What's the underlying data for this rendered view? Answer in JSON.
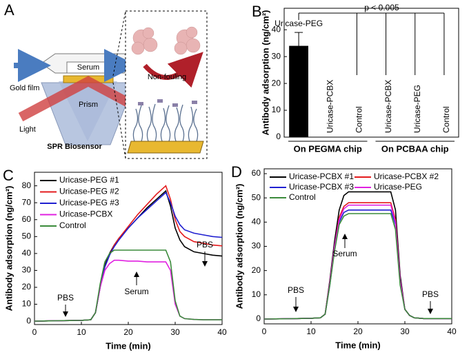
{
  "diagram": {
    "panel_label": "A",
    "gold_film": "Gold film",
    "serum": "Serum",
    "prism": "Prism",
    "light": "Light",
    "caption": "SPR Biosensor",
    "non_fouling": "Non-fouling"
  },
  "chart_data": [
    {
      "type": "bar",
      "panel_label": "B",
      "y_label": "Antibody adsorption (ng/cm²)",
      "categories": [
        "Uricase-PEG",
        "Uricase-PCBX",
        "Control",
        "Uricase-PCBX",
        "Uricase-PEG",
        "Control"
      ],
      "values": [
        34,
        0,
        0,
        0,
        0,
        0
      ],
      "errors": [
        5,
        null,
        null,
        null,
        null,
        null
      ],
      "color": "#000000",
      "groups": [
        {
          "label": "On PEGMA chip",
          "size": 3
        },
        {
          "label": "On PCBAA chip",
          "size": 3
        }
      ],
      "annotation": "p < 0.005",
      "ylim": [
        0,
        48
      ],
      "yticks": [
        0,
        10,
        20,
        30,
        40
      ],
      "grid": false
    },
    {
      "type": "line",
      "panel_label": "C",
      "x_label": "Time (min)",
      "y_label": "Antibody adsorption (ng/cm²)",
      "x": [
        0,
        5,
        10,
        12,
        13,
        14,
        15,
        16,
        17,
        18,
        20,
        22,
        24,
        26,
        28,
        29,
        30,
        31,
        32,
        34,
        36,
        38,
        40
      ],
      "series": [
        {
          "name": "Uricase-PEG #1",
          "color": "#000000",
          "values": [
            0,
            0.3,
            0.5,
            0.8,
            5,
            20,
            33,
            40,
            45,
            49,
            55,
            61,
            67,
            72,
            77,
            68,
            55,
            48,
            44,
            41,
            40,
            39,
            38.5
          ]
        },
        {
          "name": "Uricase-PEG #2",
          "color": "#e31a1c",
          "values": [
            0,
            0.3,
            0.5,
            0.8,
            5,
            20,
            32,
            39,
            45,
            49,
            56,
            63,
            69,
            75,
            80,
            72,
            60,
            53,
            50,
            47,
            46,
            45,
            44.5
          ]
        },
        {
          "name": "Uricase-PEG #3",
          "color": "#1f1fd0",
          "values": [
            0,
            0.3,
            0.5,
            0.8,
            5,
            20,
            32,
            39,
            44,
            48,
            55,
            61,
            66,
            71,
            76,
            70,
            62,
            57,
            54,
            52,
            51,
            50,
            49.5
          ]
        },
        {
          "name": "Uricase-PCBX",
          "color": "#e020e0",
          "values": [
            0,
            0.3,
            0.5,
            0.8,
            5,
            20,
            30,
            34,
            36,
            36,
            35.5,
            35.5,
            35,
            35,
            35,
            30,
            10,
            3,
            1.5,
            1,
            0.8,
            0.8,
            0.8
          ]
        },
        {
          "name": "Control",
          "color": "#3a8a3a",
          "values": [
            0,
            0.3,
            0.5,
            0.8,
            5,
            22,
            35,
            40,
            42,
            42,
            42,
            42,
            42,
            42,
            42,
            35,
            12,
            3,
            1.5,
            1,
            0.8,
            0.8,
            0.8
          ]
        }
      ],
      "annotations": [
        "PBS",
        "Serum",
        "PBS"
      ],
      "xlim": [
        0,
        40
      ],
      "xticks": [
        0,
        10,
        20,
        30,
        40
      ],
      "ylim": [
        -2,
        88
      ],
      "yticks": [
        0,
        10,
        20,
        30,
        40,
        50,
        60,
        70,
        80
      ],
      "legend": "upper left",
      "legend_columns": 1,
      "grid": false
    },
    {
      "type": "line",
      "panel_label": "D",
      "x_label": "Time (min)",
      "y_label": "Antibody adsorption (ng/cm²)",
      "x": [
        0,
        5,
        10,
        12,
        13,
        14,
        15,
        16,
        17,
        18,
        20,
        24,
        27,
        28,
        29,
        30,
        31,
        32,
        34,
        36,
        40
      ],
      "series": [
        {
          "name": "Uricase-PCBX #1",
          "color": "#000000",
          "values": [
            0,
            0.1,
            0.3,
            0.5,
            2,
            16,
            32,
            45,
            51,
            52.5,
            52.5,
            52.5,
            52.5,
            45,
            18,
            4,
            1.5,
            0.5,
            0.2,
            0.2,
            0.2
          ]
        },
        {
          "name": "Uricase-PCBX #2",
          "color": "#e31a1c",
          "values": [
            0,
            0.1,
            0.3,
            0.5,
            2,
            15,
            30,
            42,
            46.5,
            48,
            48,
            48,
            48,
            41,
            16,
            4,
            1.5,
            0.5,
            0.2,
            0.2,
            0.2
          ]
        },
        {
          "name": "Uricase-PCBX #3",
          "color": "#1f1fd0",
          "values": [
            0,
            0.1,
            0.3,
            0.5,
            2,
            14,
            29,
            40,
            44,
            45,
            45,
            45,
            45,
            39,
            15,
            4,
            1.5,
            0.5,
            0.2,
            0.2,
            0.2
          ]
        },
        {
          "name": "Uricase-PEG",
          "color": "#e020e0",
          "values": [
            0,
            0.1,
            0.3,
            0.5,
            2,
            15,
            30,
            41,
            45.5,
            47,
            47,
            47,
            47,
            40,
            16,
            4,
            1.5,
            0.5,
            0.2,
            0.2,
            0.2
          ]
        },
        {
          "name": "Control",
          "color": "#3a8a3a",
          "values": [
            0,
            0.1,
            0.3,
            0.5,
            2,
            14,
            28,
            39,
            42.5,
            43.5,
            43.5,
            43.5,
            43.5,
            37,
            14,
            4,
            1.5,
            0.5,
            0.2,
            0.2,
            0.2
          ]
        }
      ],
      "annotations": [
        "PBS",
        "Serum",
        "PBS"
      ],
      "xlim": [
        0,
        40
      ],
      "xticks": [
        0,
        10,
        20,
        30,
        40
      ],
      "ylim": [
        -2,
        62
      ],
      "yticks": [
        0,
        10,
        20,
        30,
        40,
        50,
        60
      ],
      "legend": "upper left",
      "legend_columns": 2,
      "grid": false
    }
  ]
}
